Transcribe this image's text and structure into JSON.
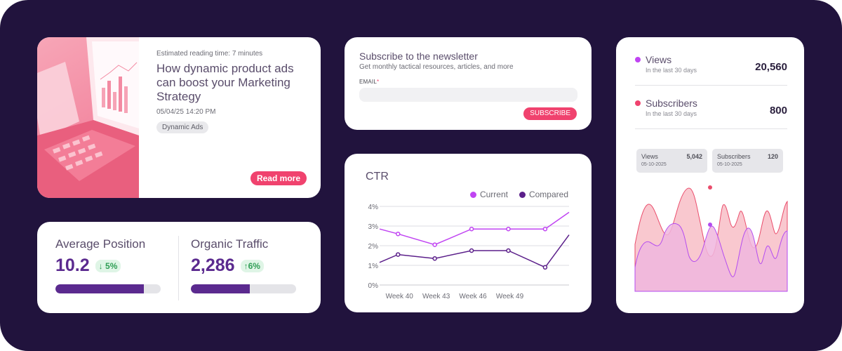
{
  "article": {
    "reading_time": "Estimated reading time: 7 minutes",
    "title": "How dynamic product ads can boost your Marketing Strategy",
    "date": "05/04/25 14:20 PM",
    "tag": "Dynamic Ads",
    "cta": "Read more"
  },
  "newsletter": {
    "title": "Subscribe to the newsletter",
    "subtitle": "Get monthly tactical resources, articles, and more",
    "email_label": "EMAIL",
    "required_mark": "*",
    "email_value": "",
    "cta": "SUBSCRIBE"
  },
  "kpis": [
    {
      "label": "Average Position",
      "value": "10.2",
      "change": "5%",
      "direction": "down",
      "progress": 0.84
    },
    {
      "label": "Organic Traffic",
      "value": "2,286",
      "change": "6%",
      "direction": "up",
      "progress": 0.56
    }
  ],
  "stats": {
    "rows": [
      {
        "name": "Views",
        "period": "In the last 30 days",
        "value": "20,560",
        "color": "#c044f2"
      },
      {
        "name": "Subscribers",
        "period": "In the last 30 days",
        "value": "800",
        "color": "#f0426e"
      }
    ],
    "tooltips": [
      {
        "name": "Views",
        "value": "5,042",
        "date": "05-10-2025"
      },
      {
        "name": "Subscribers",
        "value": "120",
        "date": "05-10-2025"
      }
    ]
  },
  "colors": {
    "accent": "#f0426e",
    "purple": "#5b2a8f",
    "current": "#c044f2",
    "compared": "#5b1f8a",
    "background": "#21133d"
  },
  "chart_data": {
    "type": "line",
    "title": "CTR",
    "x_ticks": [
      "Week 40",
      "Week 43",
      "Week 46",
      "Week 49"
    ],
    "y_ticks": [
      "0%",
      "1%",
      "2%",
      "3%",
      "4%"
    ],
    "ylim": [
      0,
      4
    ],
    "grid": true,
    "legend": "top-right",
    "x": [
      39,
      40,
      42,
      44,
      46,
      48,
      49.3
    ],
    "series": [
      {
        "name": "Current",
        "color": "#c044f2",
        "values": [
          2.85,
          2.6,
          2.05,
          2.85,
          2.85,
          2.85,
          3.7
        ]
      },
      {
        "name": "Compared",
        "color": "#5b1f8a",
        "values": [
          1.15,
          1.55,
          1.35,
          1.75,
          1.75,
          0.9,
          2.55
        ]
      }
    ]
  }
}
